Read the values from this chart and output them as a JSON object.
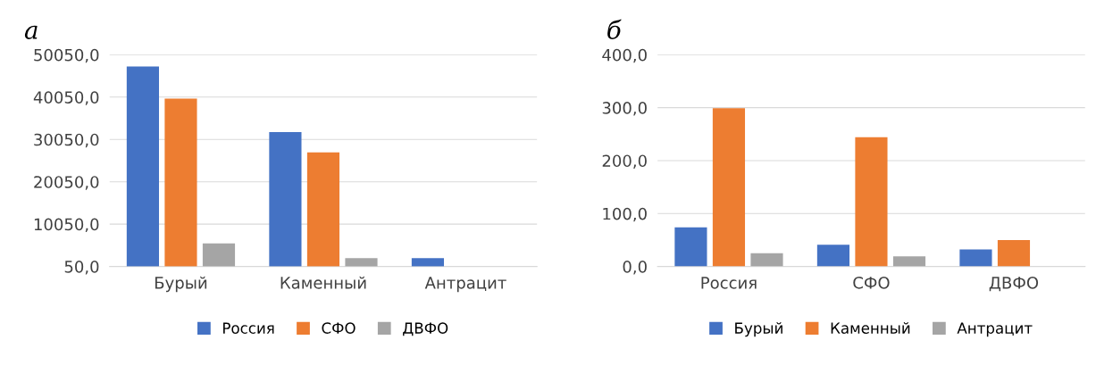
{
  "chart_data": [
    {
      "type": "bar",
      "title": "а",
      "categories": [
        "Бурый",
        "Каменный",
        "Антрацит"
      ],
      "series": [
        {
          "name": "Россия",
          "color": "#4472c4",
          "values": [
            47300,
            31800,
            2000
          ]
        },
        {
          "name": "СФО",
          "color": "#ed7d31",
          "values": [
            39700,
            27000,
            null
          ]
        },
        {
          "name": "ДВФО",
          "color": "#a5a5a5",
          "values": [
            5500,
            2000,
            null
          ]
        }
      ],
      "ylim": [
        50,
        50050
      ],
      "yticks": [
        {
          "value": 50,
          "label": "50,0"
        },
        {
          "value": 10050,
          "label": "10050,0"
        },
        {
          "value": 20050,
          "label": "20050,0"
        },
        {
          "value": 30050,
          "label": "30050,0"
        },
        {
          "value": 40050,
          "label": "40050,0"
        },
        {
          "value": 50050,
          "label": "50050,0"
        }
      ],
      "grid": "y",
      "legend": "bottom"
    },
    {
      "type": "bar",
      "title": "б",
      "categories": [
        "Россия",
        "СФО",
        "ДВФО"
      ],
      "series": [
        {
          "name": "Бурый",
          "color": "#4472c4",
          "values": [
            74,
            41,
            32
          ]
        },
        {
          "name": "Каменный",
          "color": "#ed7d31",
          "values": [
            299,
            244,
            50
          ]
        },
        {
          "name": "Антрацит",
          "color": "#a5a5a5",
          "values": [
            25,
            19,
            null
          ]
        }
      ],
      "ylim": [
        0,
        400
      ],
      "yticks": [
        {
          "value": 0,
          "label": "0,0"
        },
        {
          "value": 100,
          "label": "100,0"
        },
        {
          "value": 200,
          "label": "200,0"
        },
        {
          "value": 300,
          "label": "300,0"
        },
        {
          "value": 400,
          "label": "400,0"
        }
      ],
      "grid": "y",
      "legend": "bottom"
    }
  ]
}
